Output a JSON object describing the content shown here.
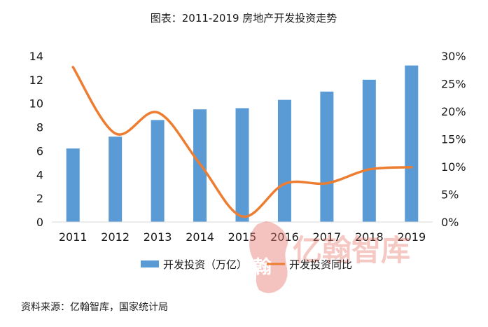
{
  "chart_data": {
    "type": "bar",
    "title": "图表：2011-2019 房地产开发投资走势",
    "categories": [
      "2011",
      "2012",
      "2013",
      "2014",
      "2015",
      "2016",
      "2017",
      "2018",
      "2019"
    ],
    "series": [
      {
        "name": "开发投资（万亿）",
        "type": "bar",
        "axis": "left",
        "color": "#5b9bd5",
        "values": [
          6.2,
          7.2,
          8.6,
          9.5,
          9.6,
          10.3,
          11.0,
          12.0,
          13.2
        ]
      },
      {
        "name": "开发投资同比",
        "type": "line",
        "axis": "right",
        "color": "#ed7d31",
        "values": [
          0.28,
          0.16,
          0.198,
          0.105,
          0.01,
          0.069,
          0.07,
          0.095,
          0.099
        ]
      }
    ],
    "y_left": {
      "min": 0,
      "max": 14,
      "ticks": [
        "0",
        "2",
        "4",
        "6",
        "8",
        "10",
        "12",
        "14"
      ]
    },
    "y_right": {
      "min": 0,
      "max": 0.3,
      "ticks": [
        "0%",
        "5%",
        "10%",
        "15%",
        "20%",
        "25%",
        "30%"
      ]
    },
    "grid": false,
    "legend": "bottom"
  },
  "source": "资料来源：亿翰智库，国家统计局",
  "watermark": {
    "text": "亿翰智库",
    "seal_char": "翰"
  }
}
